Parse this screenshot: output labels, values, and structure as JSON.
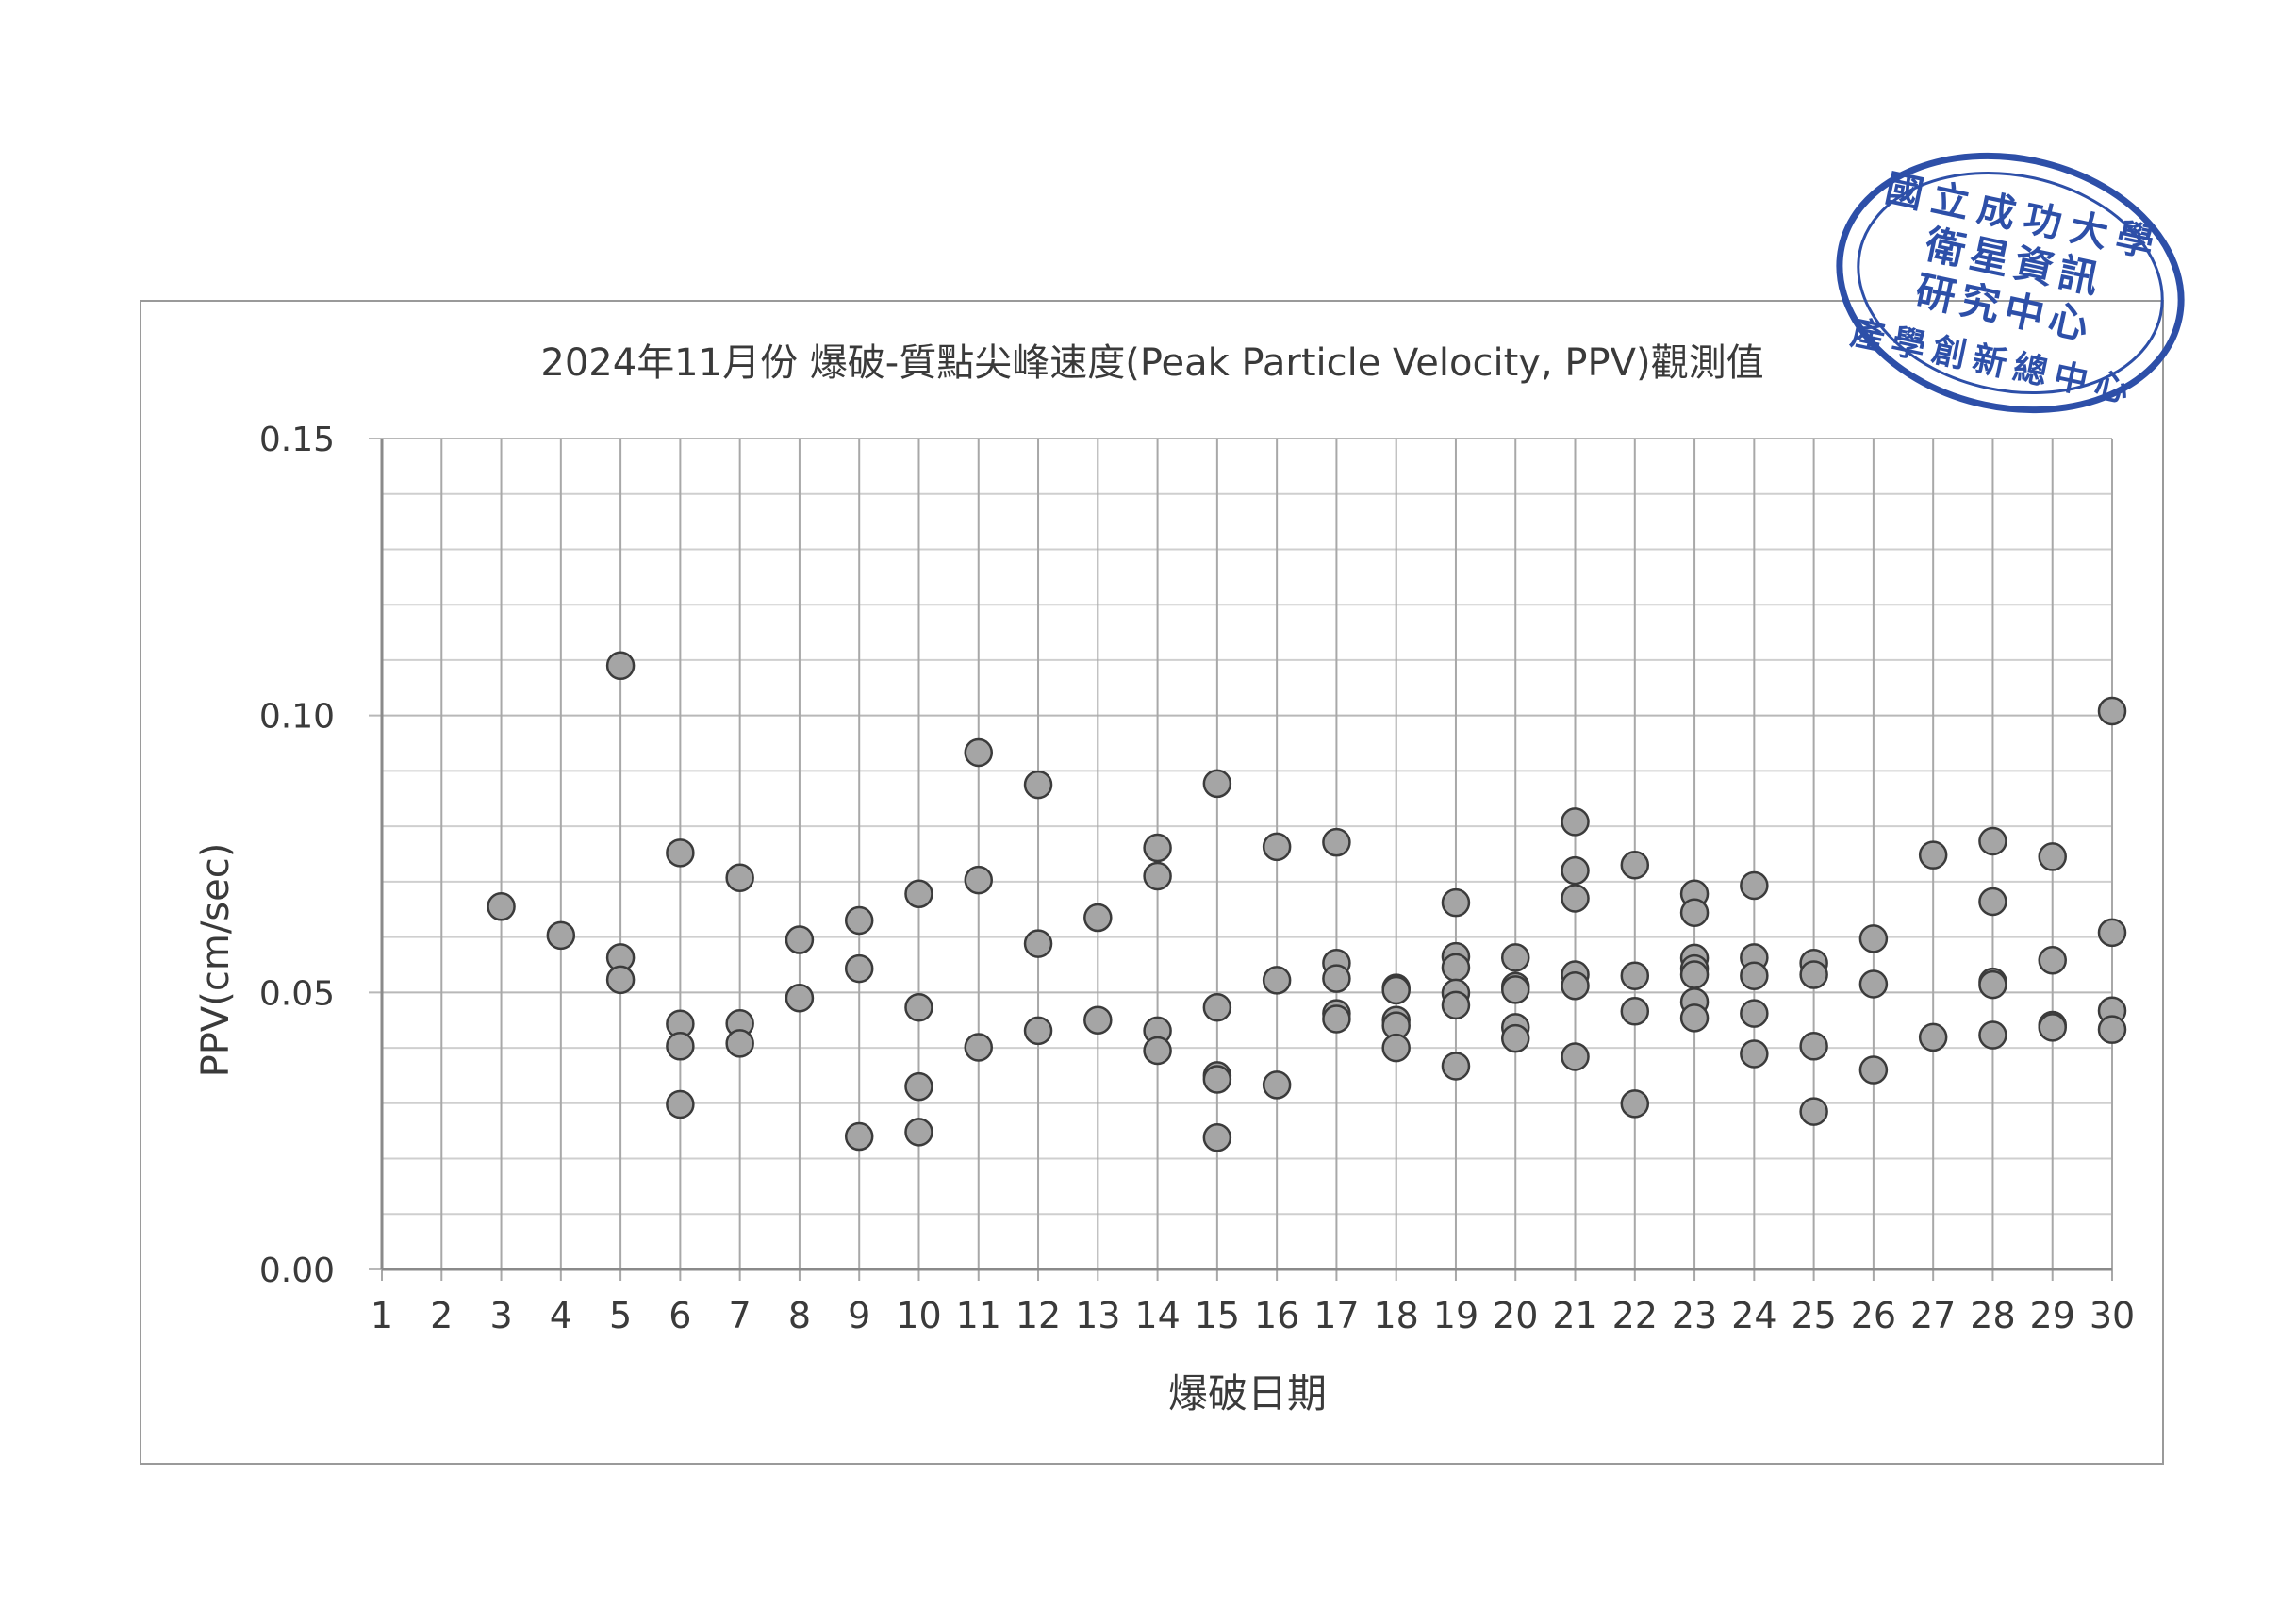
{
  "chart_data": {
    "type": "scatter",
    "title": "2024年11月份 爆破-質點尖峰速度(Peak Particle Velocity, PPV)觀測值",
    "xlabel": "爆破日期",
    "ylabel": "PPV(cm/sec)",
    "xlim": [
      1,
      30
    ],
    "ylim": [
      0,
      0.15
    ],
    "x_ticks": [
      "1",
      "2",
      "3",
      "4",
      "5",
      "6",
      "7",
      "8",
      "9",
      "10",
      "11",
      "12",
      "13",
      "14",
      "15",
      "16",
      "17",
      "18",
      "19",
      "20",
      "21",
      "22",
      "23",
      "24",
      "25",
      "26",
      "27",
      "28",
      "29",
      "30"
    ],
    "y_ticks": [
      "0.00",
      "0.05",
      "0.10",
      "0.15"
    ],
    "y_tick_values": [
      0,
      0.05,
      0.1,
      0.15
    ],
    "grid": true,
    "legend": "none",
    "point_color": "#a5a5a5",
    "series": [
      {
        "points": [
          [
            3,
            0.0655
          ],
          [
            4,
            0.0603
          ],
          [
            5,
            0.109
          ],
          [
            5,
            0.0563
          ],
          [
            5,
            0.0523
          ],
          [
            6,
            0.0752
          ],
          [
            6,
            0.0443
          ],
          [
            6,
            0.0403
          ],
          [
            6,
            0.0298
          ],
          [
            7,
            0.0707
          ],
          [
            7,
            0.0444
          ],
          [
            7,
            0.0408
          ],
          [
            8,
            0.0595
          ],
          [
            8,
            0.049
          ],
          [
            9,
            0.063
          ],
          [
            9,
            0.0543
          ],
          [
            9,
            0.024
          ],
          [
            10,
            0.0678
          ],
          [
            10,
            0.0473
          ],
          [
            10,
            0.033
          ],
          [
            10,
            0.0248
          ],
          [
            11,
            0.0933
          ],
          [
            11,
            0.0703
          ],
          [
            11,
            0.0401
          ],
          [
            12,
            0.0875
          ],
          [
            12,
            0.0588
          ],
          [
            12,
            0.0431
          ],
          [
            13,
            0.0635
          ],
          [
            13,
            0.045
          ],
          [
            14,
            0.0761
          ],
          [
            14,
            0.071
          ],
          [
            14,
            0.0431
          ],
          [
            14,
            0.0395
          ],
          [
            15,
            0.0877
          ],
          [
            15,
            0.0473
          ],
          [
            15,
            0.035
          ],
          [
            15,
            0.0343
          ],
          [
            15,
            0.0238
          ],
          [
            16,
            0.0763
          ],
          [
            16,
            0.0522
          ],
          [
            16,
            0.0333
          ],
          [
            17,
            0.0771
          ],
          [
            17,
            0.0553
          ],
          [
            17,
            0.0525
          ],
          [
            17,
            0.0462
          ],
          [
            17,
            0.0452
          ],
          [
            18,
            0.0508
          ],
          [
            18,
            0.0504
          ],
          [
            18,
            0.045
          ],
          [
            18,
            0.044
          ],
          [
            18,
            0.04
          ],
          [
            19,
            0.0662
          ],
          [
            19,
            0.0565
          ],
          [
            19,
            0.0545
          ],
          [
            19,
            0.0499
          ],
          [
            19,
            0.0477
          ],
          [
            19,
            0.0367
          ],
          [
            20,
            0.0563
          ],
          [
            20,
            0.0511
          ],
          [
            20,
            0.0505
          ],
          [
            20,
            0.0437
          ],
          [
            20,
            0.0417
          ],
          [
            21,
            0.0808
          ],
          [
            21,
            0.072
          ],
          [
            21,
            0.067
          ],
          [
            21,
            0.0532
          ],
          [
            21,
            0.0512
          ],
          [
            21,
            0.0384
          ],
          [
            22,
            0.073
          ],
          [
            22,
            0.053
          ],
          [
            22,
            0.0466
          ],
          [
            22,
            0.0299
          ],
          [
            23,
            0.0678
          ],
          [
            23,
            0.0644
          ],
          [
            23,
            0.0562
          ],
          [
            23,
            0.0543
          ],
          [
            23,
            0.0532
          ],
          [
            23,
            0.0483
          ],
          [
            23,
            0.0454
          ],
          [
            24,
            0.0693
          ],
          [
            24,
            0.0563
          ],
          [
            24,
            0.053
          ],
          [
            24,
            0.0462
          ],
          [
            24,
            0.0389
          ],
          [
            25,
            0.0553
          ],
          [
            25,
            0.0532
          ],
          [
            25,
            0.0403
          ],
          [
            25,
            0.0285
          ],
          [
            26,
            0.0597
          ],
          [
            26,
            0.0515
          ],
          [
            26,
            0.036
          ],
          [
            27,
            0.0748
          ],
          [
            27,
            0.0419
          ],
          [
            28,
            0.0773
          ],
          [
            28,
            0.0664
          ],
          [
            28,
            0.0519
          ],
          [
            28,
            0.0514
          ],
          [
            28,
            0.0423
          ],
          [
            29,
            0.0745
          ],
          [
            29,
            0.0558
          ],
          [
            29,
            0.0441
          ],
          [
            29,
            0.0437
          ],
          [
            30,
            0.1008
          ],
          [
            30,
            0.0608
          ],
          [
            30,
            0.0467
          ],
          [
            30,
            0.0433
          ]
        ]
      }
    ]
  },
  "stamp": {
    "outer_text": "國立成功大學",
    "bottom_text": "產學創新總中心",
    "inner_line1": "衛星資訊",
    "inner_line2": "研究中心",
    "color": "#2d4fa8"
  }
}
